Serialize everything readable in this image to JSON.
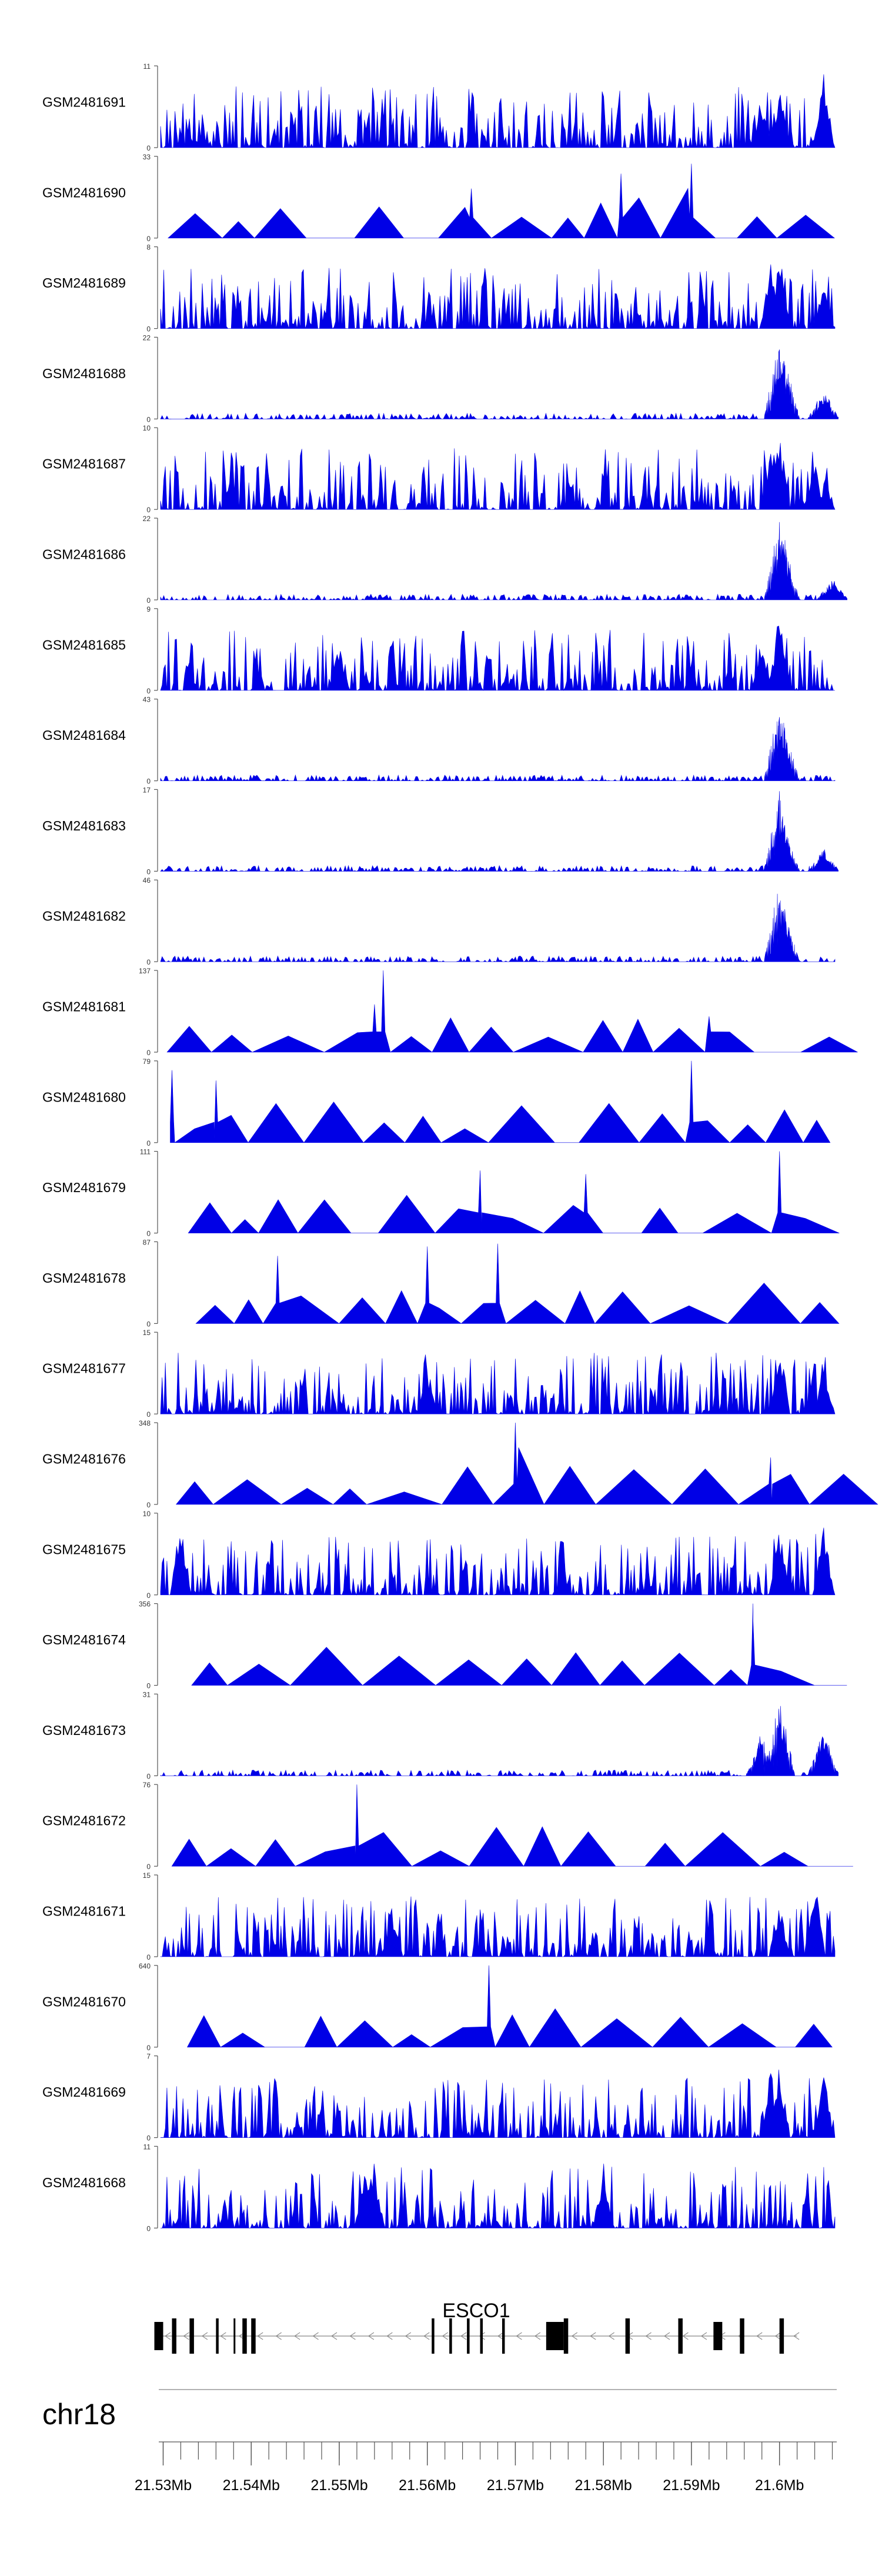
{
  "chart_data": {
    "type": "area",
    "title": "",
    "xlabel": "",
    "ylabel": "",
    "chromosome": "chr18",
    "gene": {
      "name": "ESCO1",
      "strand": "-",
      "start_mb": 21.529,
      "end_mb": 21.602,
      "exons_mb": [
        [
          21.529,
          21.53
        ],
        [
          21.531,
          21.5315
        ],
        [
          21.533,
          21.5335
        ],
        [
          21.536,
          21.5363
        ],
        [
          21.538,
          21.5382
        ],
        [
          21.539,
          21.5395
        ],
        [
          21.54,
          21.5405
        ],
        [
          21.5605,
          21.5608
        ],
        [
          21.5625,
          21.5628
        ],
        [
          21.5645,
          21.5648
        ],
        [
          21.566,
          21.5663
        ],
        [
          21.5685,
          21.5688
        ],
        [
          21.5735,
          21.5755
        ],
        [
          21.5755,
          21.576
        ],
        [
          21.5825,
          21.583
        ],
        [
          21.5885,
          21.589
        ],
        [
          21.5925,
          21.5935
        ],
        [
          21.5955,
          21.596
        ],
        [
          21.6,
          21.6005
        ]
      ]
    },
    "xaxis": {
      "range_mb": [
        21.5295,
        21.6065
      ],
      "ticks_mb": [
        21.53,
        21.54,
        21.55,
        21.56,
        21.57,
        21.58,
        21.59,
        21.6
      ],
      "tick_labels": [
        "21.53Mb",
        "21.54Mb",
        "21.55Mb",
        "21.56Mb",
        "21.57Mb",
        "21.58Mb",
        "21.59Mb",
        "21.6Mb"
      ],
      "minor_ticks_mb": [
        21.53,
        21.532,
        21.534,
        21.536,
        21.538,
        21.54,
        21.542,
        21.544,
        21.546,
        21.548,
        21.55,
        21.552,
        21.554,
        21.556,
        21.558,
        21.56,
        21.562,
        21.564,
        21.566,
        21.568,
        21.57,
        21.572,
        21.574,
        21.576,
        21.578,
        21.58,
        21.582,
        21.584,
        21.586,
        21.588,
        21.59,
        21.592,
        21.594,
        21.596,
        21.598,
        21.6,
        21.602,
        21.604,
        21.606
      ]
    },
    "series": [
      {
        "name": "GSM2481691",
        "ymax": 11,
        "profile": "dense",
        "seed": 11,
        "peaks": [
          [
            21.6,
            9
          ],
          [
            21.605,
            11
          ],
          [
            21.598,
            6
          ]
        ]
      },
      {
        "name": "GSM2481690",
        "ymax": 33,
        "profile": "sparse",
        "seed": 12,
        "peaks": [
          [
            21.565,
            20
          ],
          [
            21.59,
            30
          ],
          [
            21.582,
            26
          ]
        ]
      },
      {
        "name": "GSM2481689",
        "ymax": 8,
        "profile": "dense",
        "seed": 13,
        "peaks": [
          [
            21.6,
            8
          ],
          [
            21.599,
            7
          ],
          [
            21.605,
            5
          ]
        ]
      },
      {
        "name": "GSM2481688",
        "ymax": 22,
        "profile": "focal",
        "seed": 14,
        "peaks": [
          [
            21.6,
            22
          ],
          [
            21.6005,
            18
          ],
          [
            21.605,
            8
          ]
        ]
      },
      {
        "name": "GSM2481687",
        "ymax": 10,
        "profile": "dense",
        "seed": 15,
        "peaks": [
          [
            21.6,
            10
          ],
          [
            21.599,
            7
          ],
          [
            21.604,
            6
          ]
        ]
      },
      {
        "name": "GSM2481686",
        "ymax": 22,
        "profile": "focal",
        "seed": 16,
        "peaks": [
          [
            21.6,
            22
          ],
          [
            21.6005,
            18
          ],
          [
            21.606,
            6
          ]
        ]
      },
      {
        "name": "GSM2481685",
        "ymax": 9,
        "profile": "dense",
        "seed": 17,
        "peaks": [
          [
            21.6,
            9
          ],
          [
            21.598,
            5
          ],
          [
            21.55,
            5
          ]
        ]
      },
      {
        "name": "GSM2481684",
        "ymax": 43,
        "profile": "focal",
        "seed": 18,
        "peaks": [
          [
            21.6,
            43
          ],
          [
            21.6005,
            30
          ]
        ]
      },
      {
        "name": "GSM2481683",
        "ymax": 17,
        "profile": "focal",
        "seed": 19,
        "peaks": [
          [
            21.6,
            17
          ],
          [
            21.6005,
            12
          ],
          [
            21.605,
            5
          ]
        ]
      },
      {
        "name": "GSM2481682",
        "ymax": 46,
        "profile": "focal",
        "seed": 20,
        "peaks": [
          [
            21.6,
            46
          ],
          [
            21.6005,
            30
          ]
        ]
      },
      {
        "name": "GSM2481681",
        "ymax": 137,
        "profile": "sparse",
        "seed": 21,
        "peaks": [
          [
            21.555,
            137
          ],
          [
            21.554,
            80
          ],
          [
            21.592,
            60
          ]
        ]
      },
      {
        "name": "GSM2481680",
        "ymax": 79,
        "profile": "sparse",
        "seed": 22,
        "peaks": [
          [
            21.59,
            79
          ],
          [
            21.531,
            70
          ],
          [
            21.536,
            60
          ]
        ]
      },
      {
        "name": "GSM2481679",
        "ymax": 111,
        "profile": "sparse",
        "seed": 23,
        "peaks": [
          [
            21.6,
            111
          ],
          [
            21.578,
            80
          ],
          [
            21.566,
            85
          ]
        ]
      },
      {
        "name": "GSM2481678",
        "ymax": 87,
        "profile": "sparse",
        "seed": 24,
        "peaks": [
          [
            21.568,
            85
          ],
          [
            21.56,
            82
          ],
          [
            21.543,
            72
          ]
        ]
      },
      {
        "name": "GSM2481677",
        "ymax": 15,
        "profile": "dense",
        "seed": 25,
        "peaks": [
          [
            21.6,
            15
          ],
          [
            21.605,
            9
          ],
          [
            21.56,
            9
          ]
        ]
      },
      {
        "name": "GSM2481676",
        "ymax": 348,
        "profile": "sparse",
        "seed": 26,
        "peaks": [
          [
            21.57,
            348
          ],
          [
            21.599,
            200
          ]
        ]
      },
      {
        "name": "GSM2481675",
        "ymax": 10,
        "profile": "dense",
        "seed": 27,
        "peaks": [
          [
            21.532,
            10
          ],
          [
            21.605,
            10
          ],
          [
            21.6,
            9
          ]
        ]
      },
      {
        "name": "GSM2481674",
        "ymax": 356,
        "profile": "sparse",
        "seed": 28,
        "peaks": [
          [
            21.597,
            356
          ],
          [
            21.597,
            280
          ]
        ]
      },
      {
        "name": "GSM2481673",
        "ymax": 31,
        "profile": "focal",
        "seed": 29,
        "peaks": [
          [
            21.6,
            31
          ],
          [
            21.605,
            18
          ],
          [
            21.598,
            18
          ]
        ]
      },
      {
        "name": "GSM2481672",
        "ymax": 76,
        "profile": "sparse",
        "seed": 30,
        "peaks": [
          [
            21.552,
            76
          ]
        ]
      },
      {
        "name": "GSM2481671",
        "ymax": 15,
        "profile": "dense",
        "seed": 31,
        "peaks": [
          [
            21.604,
            15
          ],
          [
            21.6,
            10
          ],
          [
            21.556,
            10
          ]
        ]
      },
      {
        "name": "GSM2481670",
        "ymax": 640,
        "profile": "sparse",
        "seed": 32,
        "peaks": [
          [
            21.567,
            640
          ]
        ]
      },
      {
        "name": "GSM2481669",
        "ymax": 7,
        "profile": "dense",
        "seed": 33,
        "peaks": [
          [
            21.6,
            7
          ],
          [
            21.599,
            6
          ],
          [
            21.605,
            6
          ]
        ]
      },
      {
        "name": "GSM2481668",
        "ymax": 11,
        "profile": "dense",
        "seed": 34,
        "peaks": [
          [
            21.553,
            11
          ],
          [
            21.554,
            9
          ],
          [
            21.58,
            9
          ]
        ]
      }
    ]
  },
  "colors": {
    "fill": "#0000e6",
    "axis": "#555555",
    "gene": "#000000",
    "intron": "#888888",
    "ideogram": "#999999"
  }
}
